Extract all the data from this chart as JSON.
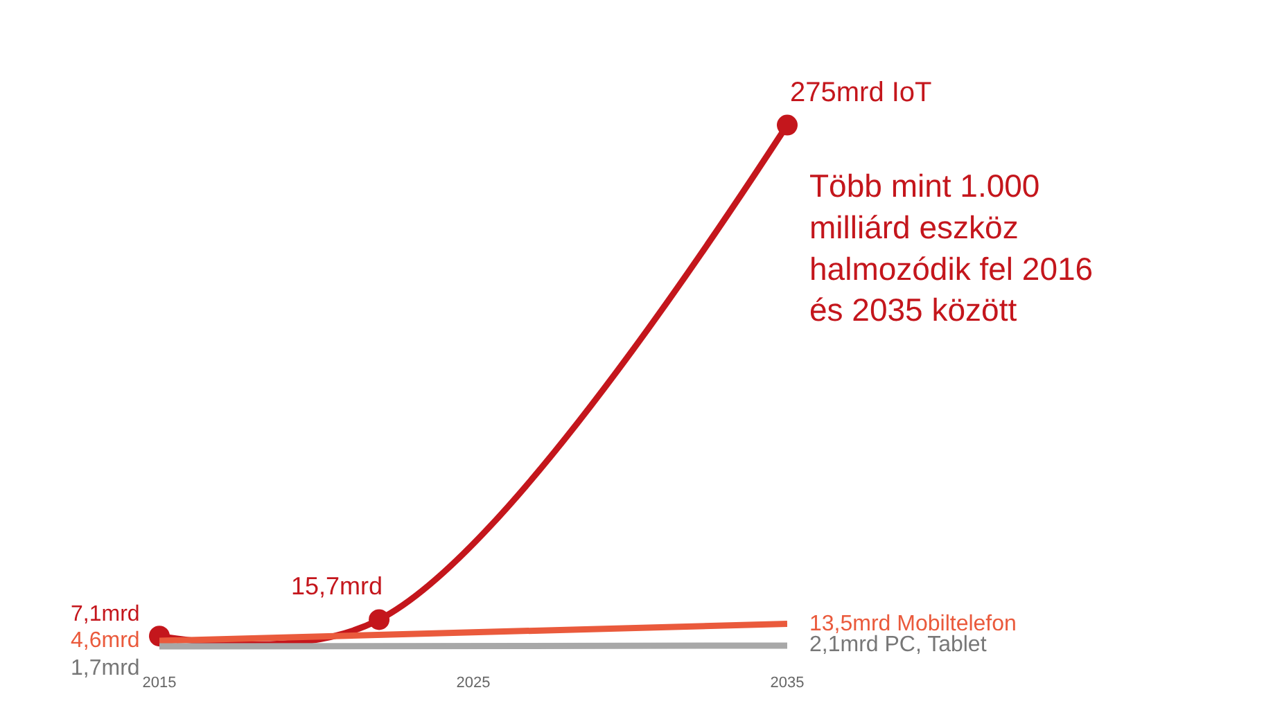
{
  "chart_data": {
    "type": "line",
    "xlim": [
      2015,
      2035
    ],
    "xticks": [
      2015,
      2025,
      2035
    ],
    "grid": false,
    "legend": false,
    "line_style": "solid",
    "annotations": [
      "Több mint 1.000 milliárd eszköz halmozódik fel 2016 és 2035 között"
    ],
    "series": [
      {
        "name": "IoT",
        "color": "#c4161c",
        "x": [
          2015,
          2022,
          2035
        ],
        "values": [
          7.1,
          15.7,
          275
        ],
        "value_labels": [
          "7,1mrd",
          "15,7mrd",
          "275mrd"
        ],
        "marker": "circle"
      },
      {
        "name": "Mobiltelefon",
        "color": "#ea5a3c",
        "x": [
          2015,
          2035
        ],
        "values": [
          4.6,
          13.5
        ],
        "value_labels": [
          "4,6mrd",
          "13,5mrd"
        ],
        "marker": "none"
      },
      {
        "name": "PC, Tablet",
        "color": "#a8a8a8",
        "x": [
          2015,
          2035
        ],
        "values": [
          1.7,
          2.1
        ],
        "value_labels": [
          "1,7mrd",
          "2,1mrd"
        ],
        "marker": "none"
      }
    ]
  }
}
